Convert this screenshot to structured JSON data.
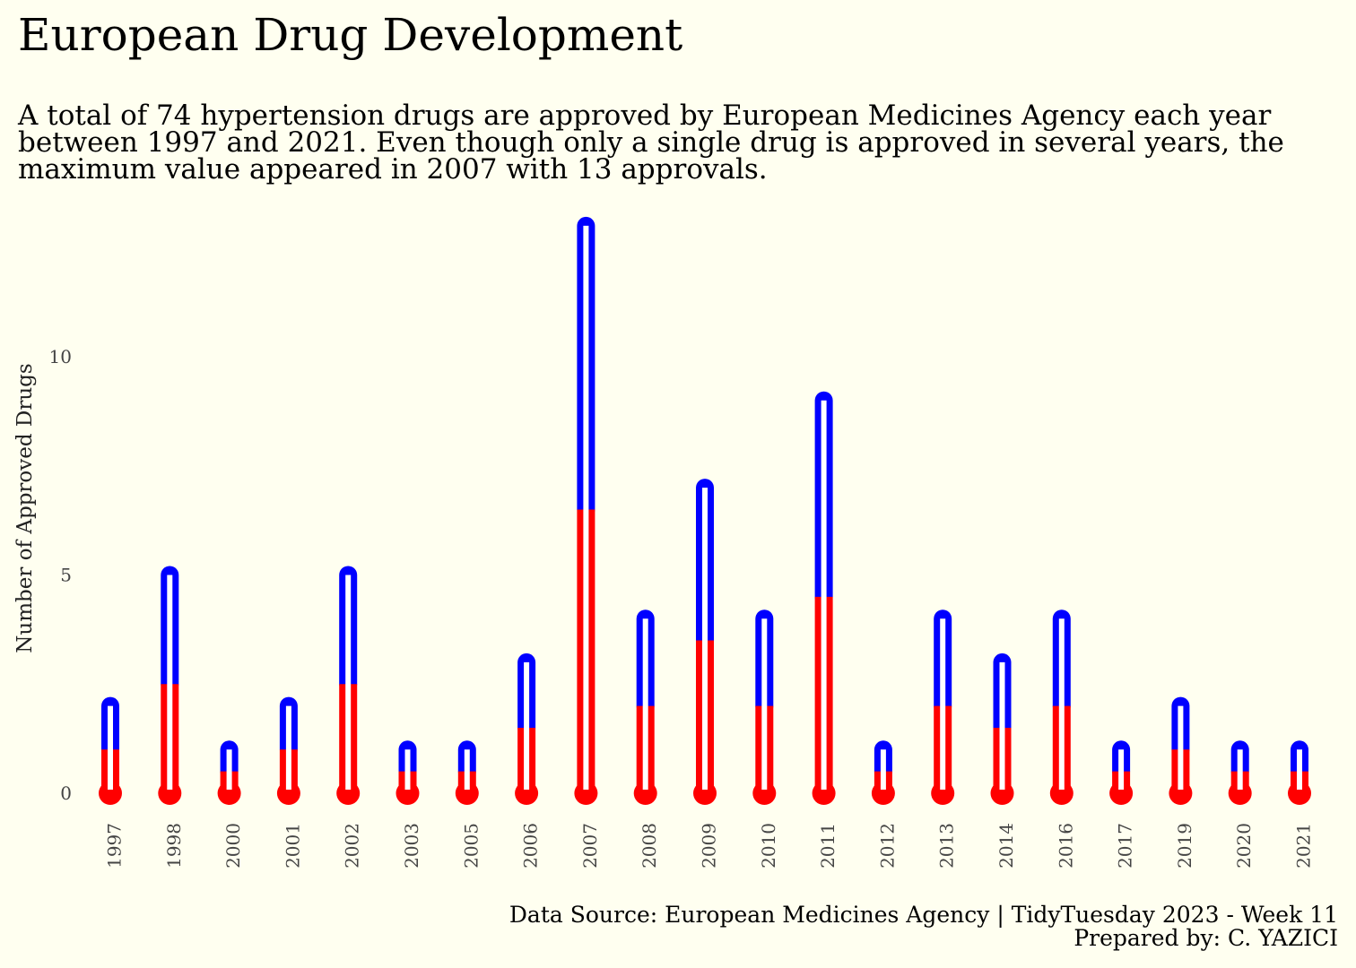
{
  "title": "European Drug Development",
  "subtitle": "A total of 74 hypertension drugs are approved by European Medicines Agency each year between 1997 and 2021. Even though only a single drug is approved in several years, the maximum value appeared in 2007 with 13 approvals.",
  "caption": {
    "source": "Data Source: European Medicines Agency | TidyTuesday 2023 - Week 11",
    "author": "Prepared by: C. YAZICI"
  },
  "colors": {
    "background": "#fffff0",
    "upper": "#0000ff",
    "lower": "#ff0000",
    "inner": "#ffffff"
  },
  "chart_data": {
    "type": "bar",
    "ylabel": "Number of Approved Drugs",
    "xlabel": "",
    "ylim": [
      0,
      13
    ],
    "yticks": [
      0,
      5,
      10
    ],
    "grid": false,
    "categories": [
      "1997",
      "1998",
      "2000",
      "2001",
      "2002",
      "2003",
      "2005",
      "2006",
      "2007",
      "2008",
      "2009",
      "2010",
      "2011",
      "2012",
      "2013",
      "2014",
      "2016",
      "2017",
      "2019",
      "2020",
      "2021"
    ],
    "values": [
      2,
      5,
      1,
      2,
      5,
      1,
      1,
      3,
      13,
      4,
      7,
      4,
      9,
      1,
      4,
      3,
      4,
      1,
      2,
      1,
      1
    ]
  }
}
